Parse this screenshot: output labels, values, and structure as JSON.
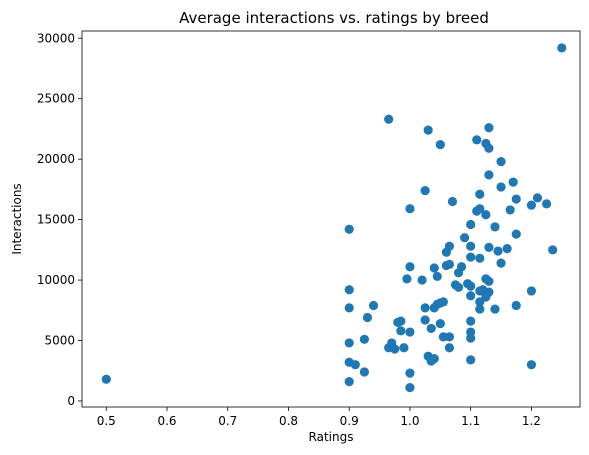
{
  "chart_data": {
    "type": "scatter",
    "title": "Average interactions vs. ratings by breed",
    "xlabel": "Ratings",
    "ylabel": "Interactions",
    "xlim": [
      0.46,
      1.28
    ],
    "ylim": [
      -500,
      30600
    ],
    "xticks": [
      0.5,
      0.6,
      0.7,
      0.8,
      0.9,
      1.0,
      1.1,
      1.2
    ],
    "xtick_labels": [
      "0.5",
      "0.6",
      "0.7",
      "0.8",
      "0.9",
      "1.0",
      "1.1",
      "1.2"
    ],
    "yticks": [
      0,
      5000,
      10000,
      15000,
      20000,
      25000,
      30000
    ],
    "ytick_labels": [
      "0",
      "5000",
      "10000",
      "15000",
      "20000",
      "25000",
      "30000"
    ],
    "grid": false,
    "marker_color": "#1f77b4",
    "points": [
      [
        0.5,
        1800
      ],
      [
        0.9,
        14200
      ],
      [
        0.9,
        9200
      ],
      [
        0.9,
        7700
      ],
      [
        0.9,
        4800
      ],
      [
        0.9,
        3200
      ],
      [
        0.9,
        1600
      ],
      [
        0.91,
        3000
      ],
      [
        0.925,
        2400
      ],
      [
        0.925,
        5100
      ],
      [
        0.93,
        6900
      ],
      [
        0.94,
        7900
      ],
      [
        0.965,
        23300
      ],
      [
        0.965,
        4400
      ],
      [
        0.97,
        4800
      ],
      [
        0.975,
        4300
      ],
      [
        0.98,
        6500
      ],
      [
        0.985,
        6600
      ],
      [
        0.985,
        5800
      ],
      [
        0.99,
        4400
      ],
      [
        0.995,
        10100
      ],
      [
        1.0,
        15900
      ],
      [
        1.0,
        11100
      ],
      [
        1.0,
        5700
      ],
      [
        1.0,
        2300
      ],
      [
        1.0,
        1100
      ],
      [
        1.02,
        10000
      ],
      [
        1.025,
        17400
      ],
      [
        1.025,
        7700
      ],
      [
        1.025,
        6700
      ],
      [
        1.03,
        22400
      ],
      [
        1.03,
        3700
      ],
      [
        1.035,
        3300
      ],
      [
        1.035,
        6000
      ],
      [
        1.04,
        11000
      ],
      [
        1.04,
        7700
      ],
      [
        1.04,
        3500
      ],
      [
        1.045,
        10300
      ],
      [
        1.045,
        8000
      ],
      [
        1.05,
        21200
      ],
      [
        1.05,
        6400
      ],
      [
        1.05,
        8100
      ],
      [
        1.055,
        5300
      ],
      [
        1.055,
        8200
      ],
      [
        1.06,
        11200
      ],
      [
        1.06,
        12300
      ],
      [
        1.065,
        12800
      ],
      [
        1.065,
        11300
      ],
      [
        1.065,
        5300
      ],
      [
        1.065,
        4400
      ],
      [
        1.07,
        16500
      ],
      [
        1.075,
        9600
      ],
      [
        1.08,
        9400
      ],
      [
        1.08,
        10600
      ],
      [
        1.085,
        11100
      ],
      [
        1.09,
        13500
      ],
      [
        1.095,
        9700
      ],
      [
        1.1,
        14600
      ],
      [
        1.1,
        12800
      ],
      [
        1.1,
        11900
      ],
      [
        1.1,
        9500
      ],
      [
        1.1,
        8700
      ],
      [
        1.1,
        6600
      ],
      [
        1.1,
        5700
      ],
      [
        1.1,
        5200
      ],
      [
        1.1,
        3400
      ],
      [
        1.11,
        21600
      ],
      [
        1.11,
        15700
      ],
      [
        1.115,
        17100
      ],
      [
        1.115,
        15900
      ],
      [
        1.115,
        11800
      ],
      [
        1.115,
        9100
      ],
      [
        1.115,
        8200
      ],
      [
        1.115,
        7600
      ],
      [
        1.12,
        9200
      ],
      [
        1.125,
        21300
      ],
      [
        1.125,
        15400
      ],
      [
        1.125,
        10100
      ],
      [
        1.125,
        8800
      ],
      [
        1.125,
        8600
      ],
      [
        1.13,
        22600
      ],
      [
        1.13,
        20900
      ],
      [
        1.13,
        18700
      ],
      [
        1.13,
        12700
      ],
      [
        1.13,
        9900
      ],
      [
        1.13,
        9000
      ],
      [
        1.14,
        14400
      ],
      [
        1.14,
        7600
      ],
      [
        1.145,
        12400
      ],
      [
        1.15,
        19800
      ],
      [
        1.15,
        17700
      ],
      [
        1.15,
        11400
      ],
      [
        1.16,
        12600
      ],
      [
        1.165,
        15800
      ],
      [
        1.17,
        18100
      ],
      [
        1.175,
        16700
      ],
      [
        1.175,
        13800
      ],
      [
        1.175,
        7900
      ],
      [
        1.2,
        16200
      ],
      [
        1.2,
        9100
      ],
      [
        1.2,
        3000
      ],
      [
        1.21,
        16800
      ],
      [
        1.225,
        16300
      ],
      [
        1.235,
        12500
      ],
      [
        1.25,
        29200
      ]
    ]
  }
}
